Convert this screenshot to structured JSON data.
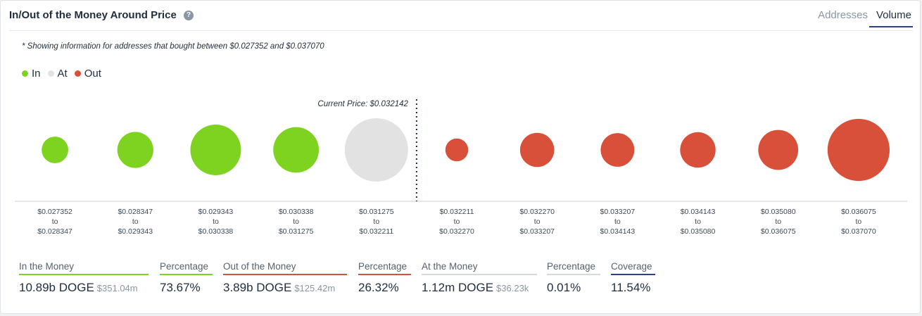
{
  "header": {
    "title": "In/Out of the Money Around Price",
    "help_icon": "question-icon",
    "tabs": [
      {
        "label": "Addresses",
        "active": false
      },
      {
        "label": "Volume",
        "active": true
      }
    ]
  },
  "note": "* Showing information for addresses that bought between $0.027352 and $0.037070",
  "legend": [
    {
      "label": "In",
      "color": "#7ed321"
    },
    {
      "label": "At",
      "color": "#e2e2e2"
    },
    {
      "label": "Out",
      "color": "#d9503a"
    }
  ],
  "chart_data": {
    "type": "scatter",
    "current_price_label": "Current Price: $0.032142",
    "current_price_after_index": 4,
    "value_unit": "relative bubble size",
    "buckets": [
      {
        "from": "$0.027352",
        "to": "$0.028347",
        "status": "in",
        "size": 0.42
      },
      {
        "from": "$0.028347",
        "to": "$0.029343",
        "status": "in",
        "size": 0.57
      },
      {
        "from": "$0.029343",
        "to": "$0.030338",
        "status": "in",
        "size": 0.8
      },
      {
        "from": "$0.030338",
        "to": "$0.031275",
        "status": "in",
        "size": 0.72
      },
      {
        "from": "$0.031275",
        "to": "$0.032211",
        "status": "at",
        "size": 1.0
      },
      {
        "from": "$0.032211",
        "to": "$0.032270",
        "status": "out",
        "size": 0.36
      },
      {
        "from": "$0.032270",
        "to": "$0.033207",
        "status": "out",
        "size": 0.54
      },
      {
        "from": "$0.033207",
        "to": "$0.034143",
        "status": "out",
        "size": 0.53
      },
      {
        "from": "$0.034143",
        "to": "$0.035080",
        "status": "out",
        "size": 0.56
      },
      {
        "from": "$0.035080",
        "to": "$0.036075",
        "status": "out",
        "size": 0.63
      },
      {
        "from": "$0.036075",
        "to": "$0.037070",
        "status": "out",
        "size": 0.98
      }
    ],
    "connector": "to"
  },
  "stats": [
    {
      "label": "In the Money",
      "value": "10.89b DOGE",
      "sub": "$351.04m",
      "underline": "#7ed321"
    },
    {
      "label": "Percentage",
      "value": "73.67%",
      "sub": "",
      "underline": "#7ed321"
    },
    {
      "label": "Out of the Money",
      "value": "3.89b DOGE",
      "sub": "$125.42m",
      "underline": "#d9503a"
    },
    {
      "label": "Percentage",
      "value": "26.32%",
      "sub": "",
      "underline": "#d9503a"
    },
    {
      "label": "At the Money",
      "value": "1.12m DOGE",
      "sub": "$36.23k",
      "underline": "#d5d8dc"
    },
    {
      "label": "Percentage",
      "value": "0.01%",
      "sub": "",
      "underline": "#d5d8dc"
    },
    {
      "label": "Coverage",
      "value": "11.54%",
      "sub": "",
      "underline": "#2c3e8f"
    }
  ]
}
